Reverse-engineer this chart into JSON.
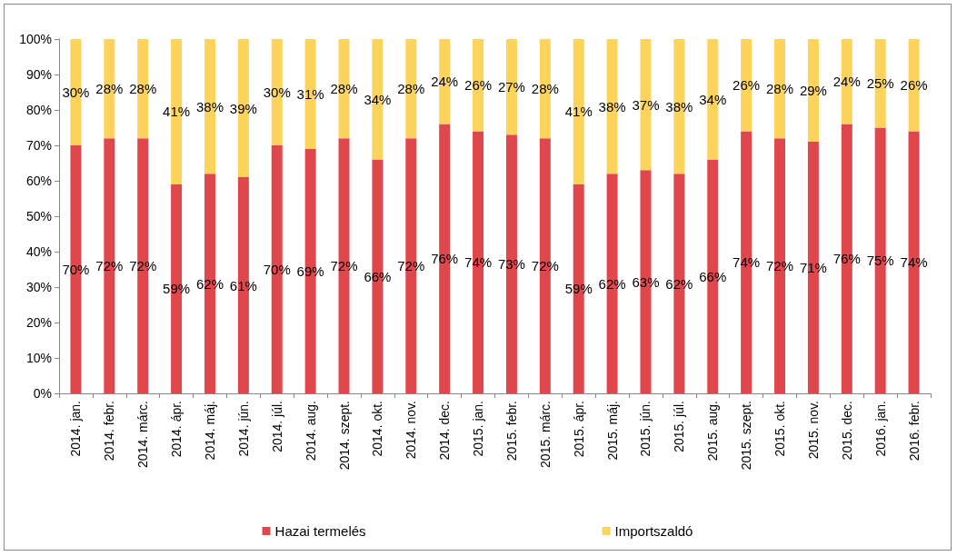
{
  "chart_data": {
    "type": "bar",
    "stacked": true,
    "legend": "bottom",
    "grid": false,
    "categories": [
      "2014. jan.",
      "2014. febr.",
      "2014. márc.",
      "2014. ápr.",
      "2014. máj.",
      "2014. jún.",
      "2014. júl.",
      "2014. aug.",
      "2014. szept.",
      "2014. okt.",
      "2014. nov.",
      "2014. dec.",
      "2015. jan.",
      "2015. febr.",
      "2015. márc.",
      "2015. ápr.",
      "2015. máj.",
      "2015. jún.",
      "2015. júl.",
      "2015. aug.",
      "2015. szept.",
      "2015. okt.",
      "2015. nov.",
      "2015. dec.",
      "2016. jan.",
      "2016. febr."
    ],
    "ylim": [
      0,
      100
    ],
    "yticks": [
      {
        "value": 0,
        "label": "0%"
      },
      {
        "value": 10,
        "label": "10%"
      },
      {
        "value": 20,
        "label": "20%"
      },
      {
        "value": 30,
        "label": "30%"
      },
      {
        "value": 40,
        "label": "40%"
      },
      {
        "value": 50,
        "label": "50%"
      },
      {
        "value": 60,
        "label": "60%"
      },
      {
        "value": 70,
        "label": "70%"
      },
      {
        "value": 80,
        "label": "80%"
      },
      {
        "value": 90,
        "label": "90%"
      },
      {
        "value": 100,
        "label": "100%"
      }
    ],
    "series": [
      {
        "name": "Hazai termelés",
        "color": "#e0474c",
        "values": [
          70,
          72,
          72,
          59,
          62,
          61,
          70,
          69,
          72,
          66,
          72,
          76,
          74,
          73,
          72,
          59,
          62,
          63,
          62,
          66,
          74,
          72,
          71,
          76,
          75,
          74
        ],
        "value_labels": [
          "70%",
          "72%",
          "72%",
          "59%",
          "62%",
          "61%",
          "70%",
          "69%",
          "72%",
          "66%",
          "72%",
          "76%",
          "74%",
          "73%",
          "72%",
          "59%",
          "62%",
          "63%",
          "62%",
          "66%",
          "74%",
          "72%",
          "71%",
          "76%",
          "75%",
          "74%"
        ]
      },
      {
        "name": "Importszaldó",
        "color": "#fcd45c",
        "values": [
          30,
          28,
          28,
          41,
          38,
          39,
          30,
          31,
          28,
          34,
          28,
          24,
          26,
          27,
          28,
          41,
          38,
          37,
          38,
          34,
          26,
          28,
          29,
          24,
          25,
          26
        ],
        "value_labels": [
          "30%",
          "28%",
          "28%",
          "41%",
          "38%",
          "39%",
          "30%",
          "31%",
          "28%",
          "34%",
          "28%",
          "24%",
          "26%",
          "27%",
          "28%",
          "41%",
          "38%",
          "37%",
          "38%",
          "34%",
          "26%",
          "28%",
          "29%",
          "24%",
          "25%",
          "26%"
        ]
      }
    ]
  }
}
